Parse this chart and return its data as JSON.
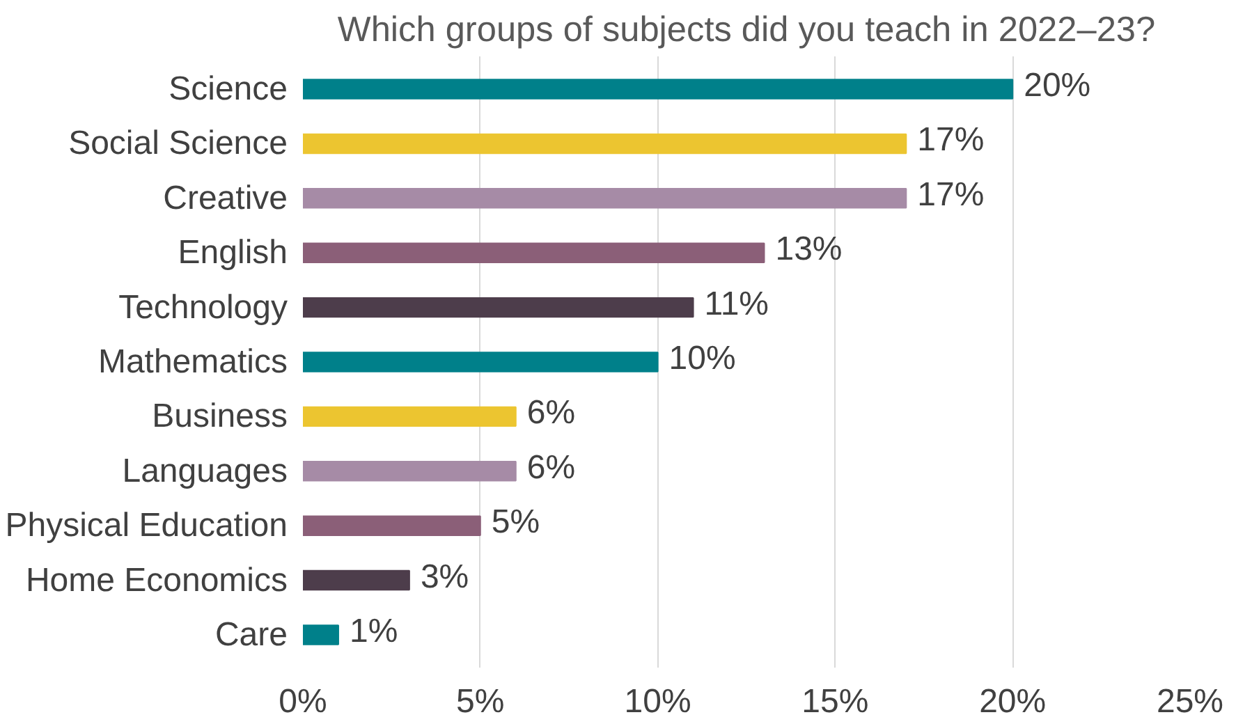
{
  "chart_data": {
    "type": "bar",
    "orientation": "horizontal",
    "title": "Which groups of subjects did you teach in 2022–23?",
    "categories": [
      "Science",
      "Social Science",
      "Creative",
      "English",
      "Technology",
      "Mathematics",
      "Business",
      "Languages",
      "Physical Education",
      "Home Economics",
      "Care"
    ],
    "values": [
      20,
      17,
      17,
      13,
      11,
      10,
      6,
      6,
      5,
      3,
      1
    ],
    "colors": [
      "#00808a",
      "#ecc530",
      "#a68ba6",
      "#8b5f78",
      "#4d3d4b",
      "#00808a",
      "#ecc530",
      "#a68ba6",
      "#8b5f78",
      "#4d3d4b",
      "#00808a"
    ],
    "value_labels": [
      "20%",
      "17%",
      "17%",
      "13%",
      "11%",
      "10%",
      "6%",
      "6%",
      "5%",
      "3%",
      "1%"
    ],
    "xlim": [
      0,
      25
    ],
    "xticks": [
      {
        "value": 0,
        "label": "0%"
      },
      {
        "value": 5,
        "label": "5%"
      },
      {
        "value": 10,
        "label": "10%"
      },
      {
        "value": 15,
        "label": "15%"
      },
      {
        "value": 20,
        "label": "20%"
      },
      {
        "value": 25,
        "label": "25%"
      }
    ],
    "grid": "x"
  }
}
